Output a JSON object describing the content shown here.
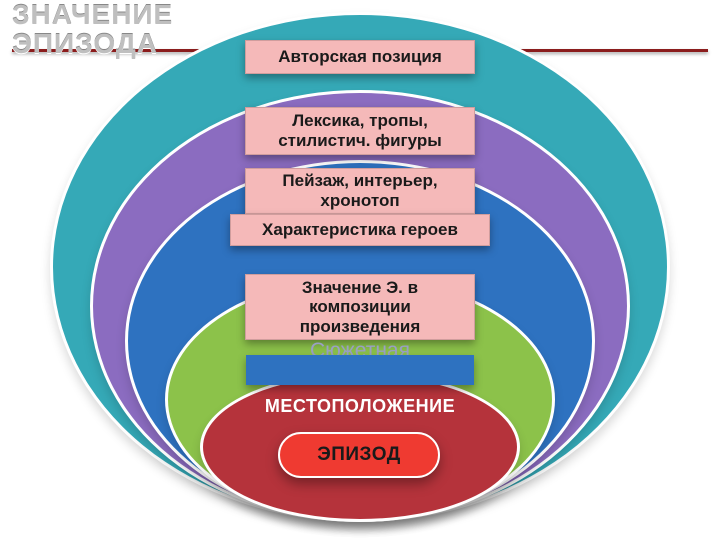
{
  "title": {
    "line1": "ЗНАЧЕНИЕ",
    "line2": "ЭПИЗОДА",
    "rule_color": "#8b1d1d"
  },
  "ellipses": {
    "e1": {
      "fill": "#35a9b7"
    },
    "e2": {
      "fill": "#8b6cc0"
    },
    "e3": {
      "fill": "#2e72c0"
    },
    "e4": {
      "fill": "#8cc24a"
    },
    "e5": {
      "fill": "#b5333b"
    }
  },
  "boxes": {
    "bg": "#f5b9b9",
    "b1": "Авторская позиция",
    "b2": "Лексика, тропы, стилистич. фигуры",
    "b3": "Пейзаж, интерьер, хронотоп",
    "b4": "Характеристика героев",
    "b5": "Значение Э. в композиции произведения"
  },
  "plot_label": "Сюжетная сторона",
  "location_label": "МЕСТОПОЛОЖЕНИЕ",
  "episode_pill": {
    "label": "ЭПИЗОД",
    "bg": "#ef3a31"
  },
  "bar_blue_color": "#2e72c0",
  "fonts": {
    "title_size": 28,
    "box_size": 17,
    "pill_size": 19
  }
}
